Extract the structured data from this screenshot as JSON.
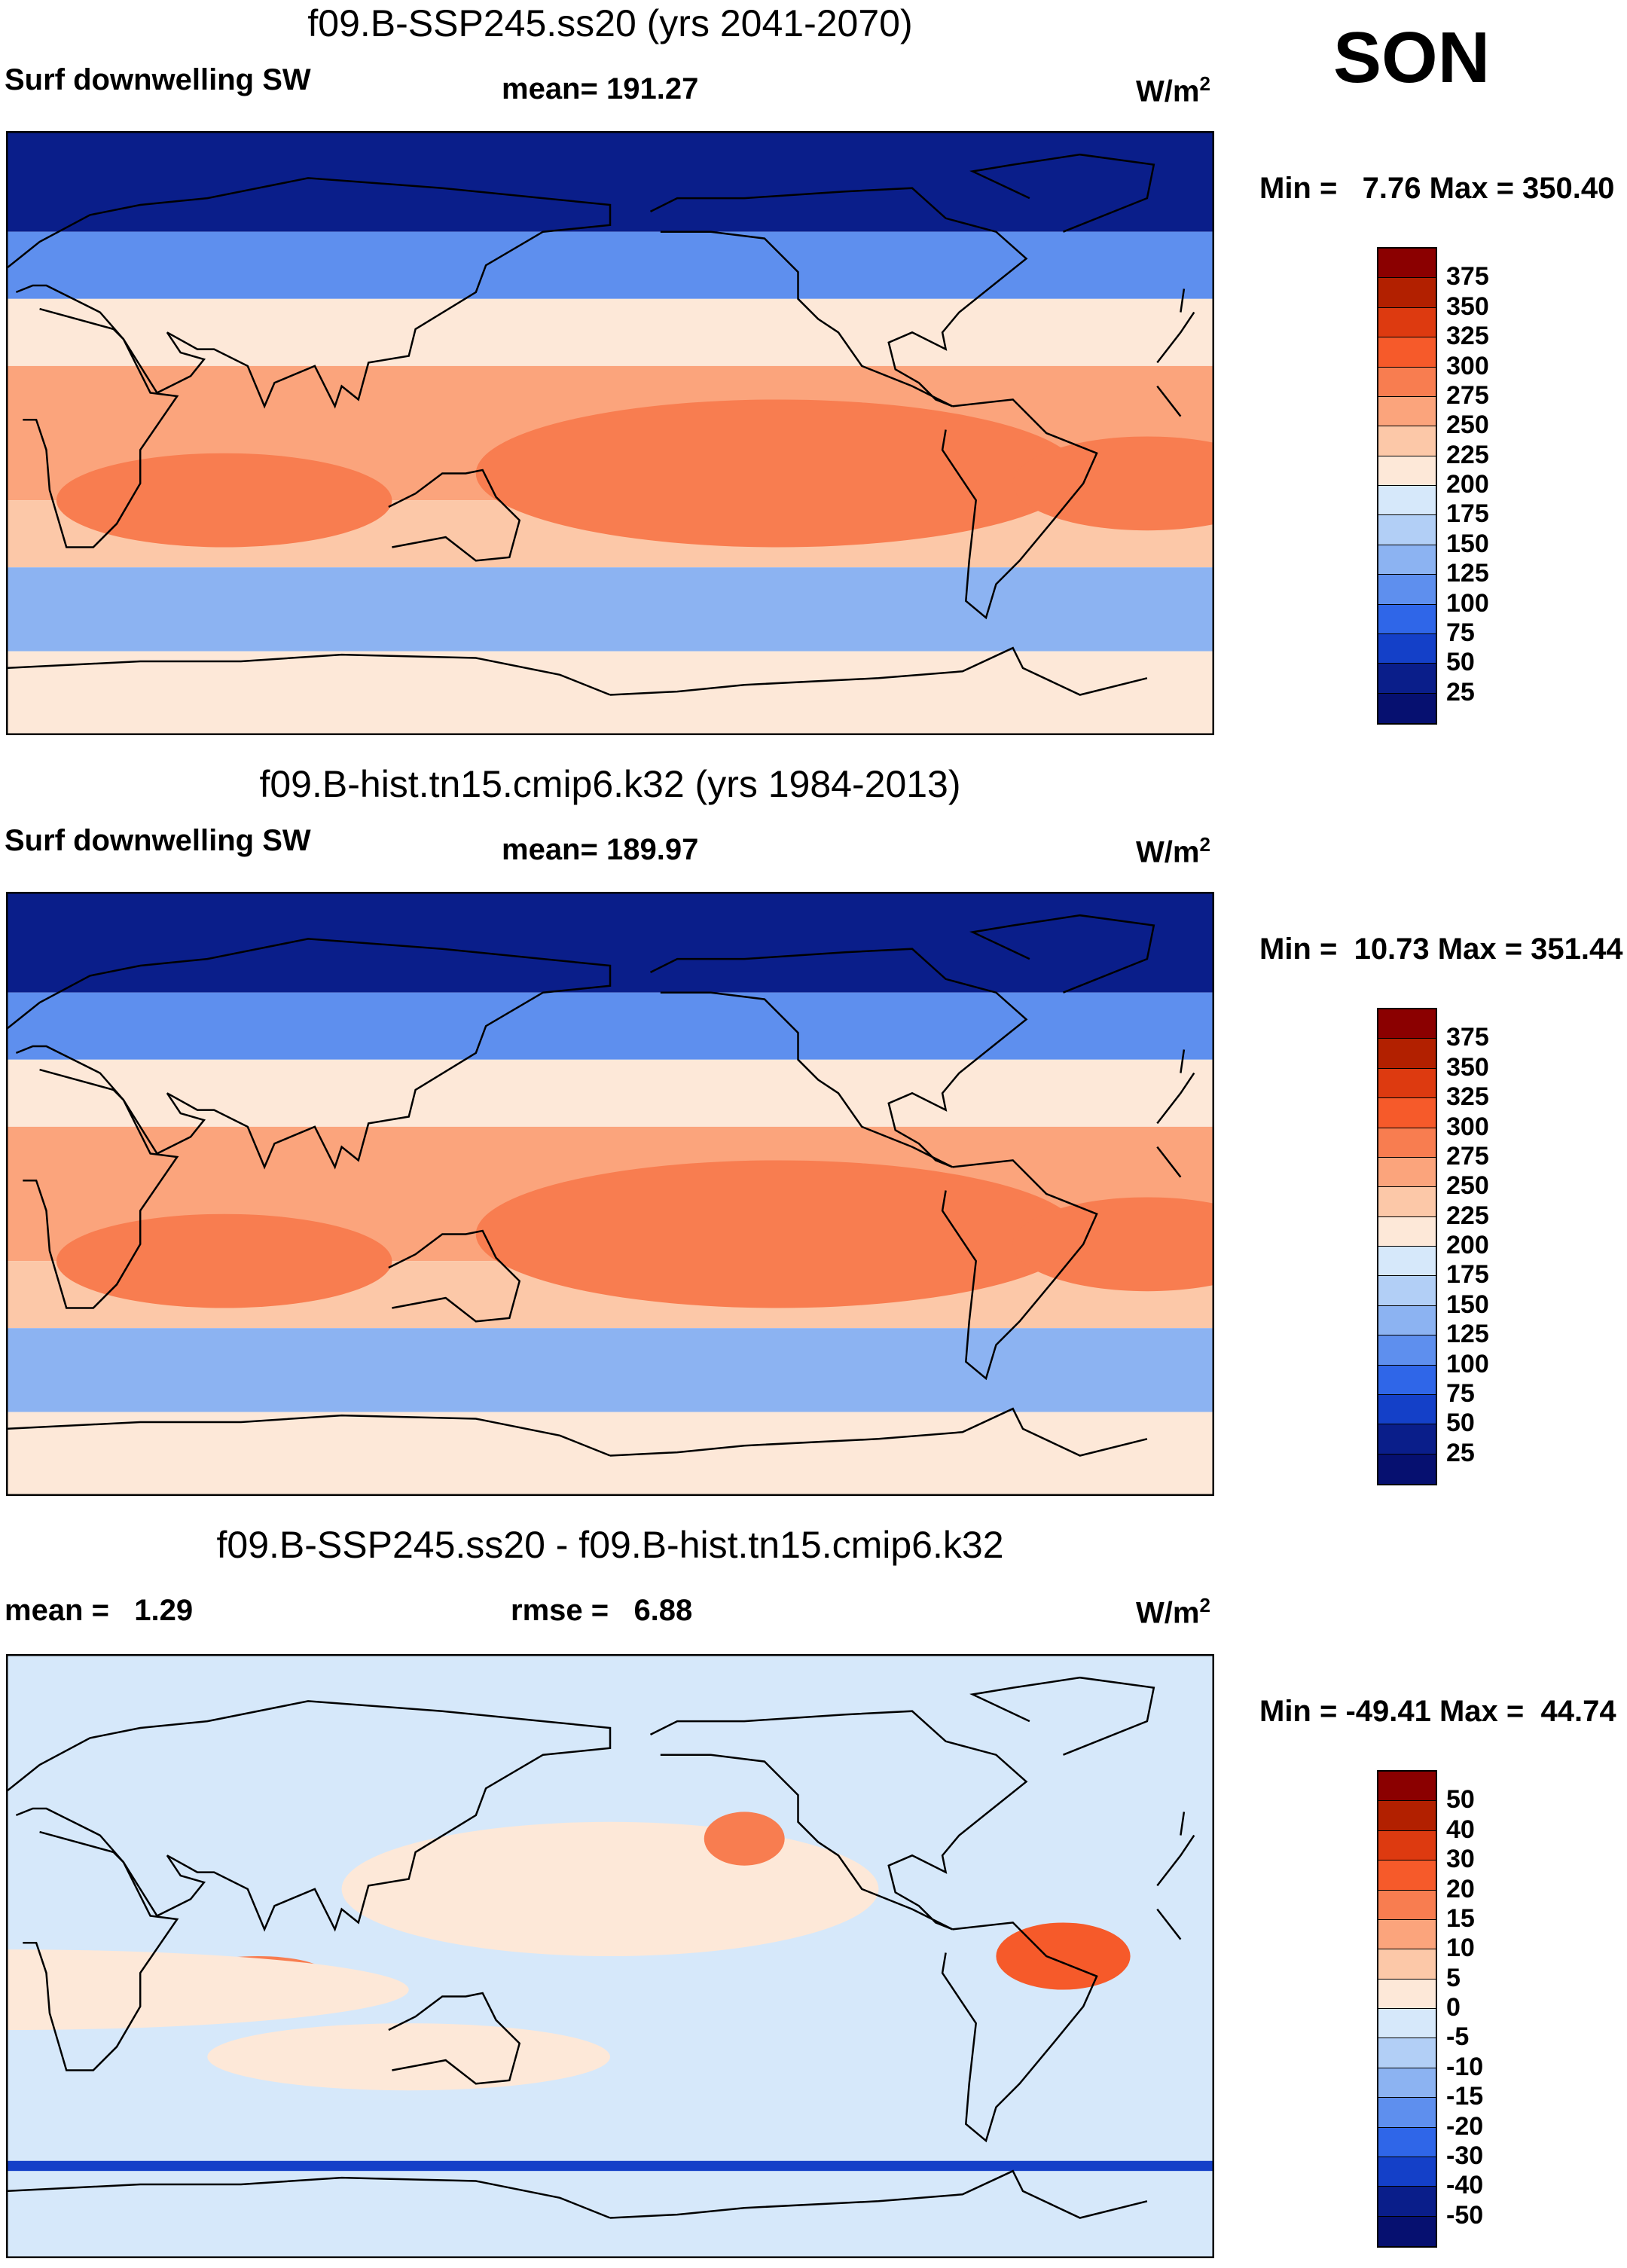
{
  "season": "SON",
  "units": "W/m",
  "units_sup": "2",
  "chart_data": [
    {
      "type": "heatmap",
      "title": "f09.B-SSP245.ss20 (yrs 2041-2070)",
      "left_label": "Surf downwelling SW",
      "center_label": "mean= 191.27",
      "min_label": "Min =   7.76 Max = 350.40",
      "variable": "Surf downwelling SW",
      "mean": 191.27,
      "min": 7.76,
      "max": 350.4,
      "levels": [
        "375",
        "350",
        "325",
        "300",
        "275",
        "250",
        "225",
        "200",
        "175",
        "150",
        "125",
        "100",
        "75",
        "50",
        "25"
      ],
      "colors": [
        "#8b0000",
        "#b22000",
        "#dd3a10",
        "#f65a2a",
        "#f87d50",
        "#fba47c",
        "#fcc8a8",
        "#fde8d8",
        "#d6e8fa",
        "#b2cff6",
        "#8cb3f2",
        "#5e8fee",
        "#2f66e8",
        "#1440c8",
        "#0a1e8a",
        "#061070"
      ],
      "zonal_bands": [
        {
          "lat": [
            60,
            90
          ],
          "value": 40
        },
        {
          "lat": [
            40,
            60
          ],
          "value": 110
        },
        {
          "lat": [
            20,
            40
          ],
          "value": 220
        },
        {
          "lat": [
            -20,
            20
          ],
          "value": 260
        },
        {
          "lat": [
            -40,
            -20
          ],
          "value": 230
        },
        {
          "lat": [
            -65,
            -40
          ],
          "value": 140
        },
        {
          "lat": [
            -90,
            -65
          ],
          "value": 200
        }
      ]
    },
    {
      "type": "heatmap",
      "title": "f09.B-hist.tn15.cmip6.k32 (yrs 1984-2013)",
      "left_label": "Surf downwelling SW",
      "center_label": "mean= 189.97",
      "min_label": "Min =  10.73 Max = 351.44",
      "variable": "Surf downwelling SW",
      "mean": 189.97,
      "min": 10.73,
      "max": 351.44,
      "levels": [
        "375",
        "350",
        "325",
        "300",
        "275",
        "250",
        "225",
        "200",
        "175",
        "150",
        "125",
        "100",
        "75",
        "50",
        "25"
      ],
      "colors": [
        "#8b0000",
        "#b22000",
        "#dd3a10",
        "#f65a2a",
        "#f87d50",
        "#fba47c",
        "#fcc8a8",
        "#fde8d8",
        "#d6e8fa",
        "#b2cff6",
        "#8cb3f2",
        "#5e8fee",
        "#2f66e8",
        "#1440c8",
        "#0a1e8a",
        "#061070"
      ],
      "zonal_bands": [
        {
          "lat": [
            60,
            90
          ],
          "value": 40
        },
        {
          "lat": [
            40,
            60
          ],
          "value": 110
        },
        {
          "lat": [
            20,
            40
          ],
          "value": 220
        },
        {
          "lat": [
            -20,
            20
          ],
          "value": 258
        },
        {
          "lat": [
            -40,
            -20
          ],
          "value": 230
        },
        {
          "lat": [
            -65,
            -40
          ],
          "value": 140
        },
        {
          "lat": [
            -90,
            -65
          ],
          "value": 200
        }
      ]
    },
    {
      "type": "heatmap",
      "title": "f09.B-SSP245.ss20 - f09.B-hist.tn15.cmip6.k32",
      "left_label": "mean =   1.29",
      "center_label": "rmse =   6.88",
      "min_label": "Min = -49.41 Max =  44.74",
      "mean": 1.29,
      "rmse": 6.88,
      "min": -49.41,
      "max": 44.74,
      "levels": [
        "50",
        "40",
        "30",
        "20",
        "15",
        "10",
        "5",
        "0",
        "-5",
        "-10",
        "-15",
        "-20",
        "-30",
        "-40",
        "-50"
      ],
      "colors": [
        "#8b0000",
        "#b22000",
        "#dd3a10",
        "#f65a2a",
        "#f87d50",
        "#fba47c",
        "#fcc8a8",
        "#fde8d8",
        "#d6e8fa",
        "#b2cff6",
        "#8cb3f2",
        "#5e8fee",
        "#2f66e8",
        "#1440c8",
        "#0a1e8a",
        "#061070"
      ]
    }
  ]
}
